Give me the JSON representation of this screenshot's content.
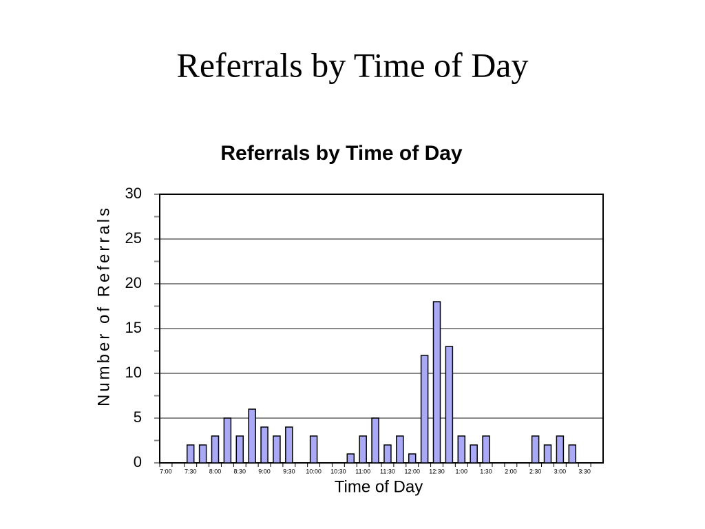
{
  "slide": {
    "title": "Referrals by Time of Day"
  },
  "chart_data": {
    "type": "bar",
    "title": "Referrals by Time of Day",
    "x_label": "Time of Day",
    "y_label": "Number of Referrals",
    "categories": [
      "7:00",
      null,
      "7:30",
      null,
      "8:00",
      null,
      "8:30",
      null,
      "9:00",
      null,
      "9:30",
      null,
      "10:00",
      null,
      "10:30",
      null,
      "11:00",
      null,
      "11:30",
      null,
      "12:00",
      null,
      "12:30",
      null,
      "1:00",
      null,
      "1:30",
      null,
      "2:00",
      null,
      "2:30",
      null,
      "3:00",
      null,
      "3:30",
      null
    ],
    "values": [
      0,
      0,
      2,
      2,
      3,
      5,
      3,
      6,
      4,
      3,
      4,
      0,
      3,
      0,
      0,
      1,
      3,
      5,
      2,
      3,
      1,
      12,
      18,
      13,
      3,
      2,
      3,
      0,
      0,
      0,
      3,
      2,
      3,
      2,
      0,
      0
    ],
    "color": "#a9a9f5",
    "ylim": [
      0,
      30
    ],
    "yticks": [
      0,
      5,
      10,
      15,
      20,
      25,
      30
    ],
    "grid": true
  }
}
